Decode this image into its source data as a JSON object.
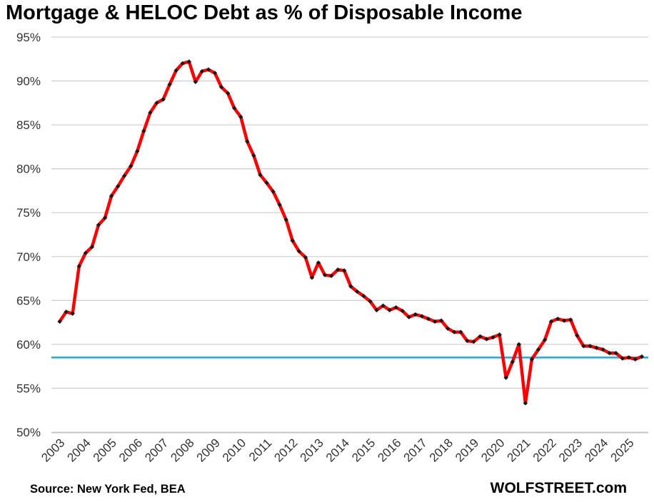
{
  "title": "Mortgage & HELOC Debt as % of Disposable Income",
  "footer": {
    "source": "Source: New York Fed, BEA",
    "brand": "WOLFSTREET.com"
  },
  "colors": {
    "series": "#ff0000",
    "markers": "#1a1a1a",
    "reference_line": "#1aa9e6",
    "grid": "#d0d0d0"
  },
  "chart_data": {
    "type": "line",
    "title": "Mortgage & HELOC Debt as % of Disposable Income",
    "xlabel": "",
    "ylabel": "",
    "ylim": [
      50,
      95
    ],
    "yticks": [
      50,
      55,
      60,
      65,
      70,
      75,
      80,
      85,
      90,
      95
    ],
    "ytick_labels": [
      "50%",
      "55%",
      "60%",
      "65%",
      "70%",
      "75%",
      "80%",
      "85%",
      "90%",
      "95%"
    ],
    "xticks": [
      "2003",
      "2004",
      "2005",
      "2006",
      "2007",
      "2008",
      "2009",
      "2010",
      "2011",
      "2012",
      "2013",
      "2014",
      "2015",
      "2016",
      "2017",
      "2018",
      "2019",
      "2020",
      "2021",
      "2022",
      "2023",
      "2024",
      "2025"
    ],
    "grid": true,
    "legend": "none",
    "reference_line": 58.5,
    "series": [
      {
        "x": [
          2003.0,
          2003.25,
          2003.5,
          2003.75,
          2004.0,
          2004.25,
          2004.5,
          2004.75,
          2005.0,
          2005.25,
          2005.5,
          2005.75,
          2006.0,
          2006.25,
          2006.5,
          2006.75,
          2007.0,
          2007.25,
          2007.5,
          2007.75,
          2008.0,
          2008.25,
          2008.5,
          2008.75,
          2009.0,
          2009.25,
          2009.5,
          2009.75,
          2010.0,
          2010.25,
          2010.5,
          2010.75,
          2011.0,
          2011.25,
          2011.5,
          2011.75,
          2012.0,
          2012.25,
          2012.5,
          2012.75,
          2013.0,
          2013.25,
          2013.5,
          2013.75,
          2014.0,
          2014.25,
          2014.5,
          2014.75,
          2015.0,
          2015.25,
          2015.5,
          2015.75,
          2016.0,
          2016.25,
          2016.5,
          2016.75,
          2017.0,
          2017.25,
          2017.5,
          2017.75,
          2018.0,
          2018.25,
          2018.5,
          2018.75,
          2019.0,
          2019.25,
          2019.5,
          2019.75,
          2020.0,
          2020.25,
          2020.5,
          2020.75,
          2021.0,
          2021.25,
          2021.5,
          2021.75,
          2022.0,
          2022.25,
          2022.5,
          2022.75,
          2023.0,
          2023.25,
          2023.5,
          2023.75,
          2024.0,
          2024.25,
          2024.5,
          2024.75,
          2025.0,
          2025.25,
          2025.5
        ],
        "values": [
          62.6,
          63.7,
          63.5,
          68.9,
          70.4,
          71.1,
          73.6,
          74.4,
          76.9,
          78.0,
          79.2,
          80.3,
          82.0,
          84.3,
          86.4,
          87.5,
          87.9,
          89.6,
          91.2,
          92.0,
          92.2,
          89.9,
          91.1,
          91.3,
          90.9,
          89.3,
          88.6,
          86.9,
          85.9,
          83.1,
          81.5,
          79.3,
          78.4,
          77.4,
          75.9,
          74.2,
          71.8,
          70.6,
          69.9,
          67.6,
          69.3,
          67.9,
          67.8,
          68.5,
          68.4,
          66.6,
          66.0,
          65.5,
          64.9,
          63.9,
          64.4,
          63.9,
          64.2,
          63.8,
          63.1,
          63.4,
          63.2,
          62.9,
          62.6,
          62.7,
          61.8,
          61.4,
          61.4,
          60.4,
          60.3,
          60.9,
          60.6,
          60.8,
          61.1,
          56.2,
          58.0,
          60.0,
          53.3,
          58.3,
          59.4,
          60.5,
          62.6,
          62.9,
          62.7,
          62.8,
          61.0,
          59.8,
          59.8,
          59.6,
          59.4,
          59.0,
          59.0,
          58.4,
          58.5,
          58.3,
          58.6
        ]
      }
    ]
  }
}
